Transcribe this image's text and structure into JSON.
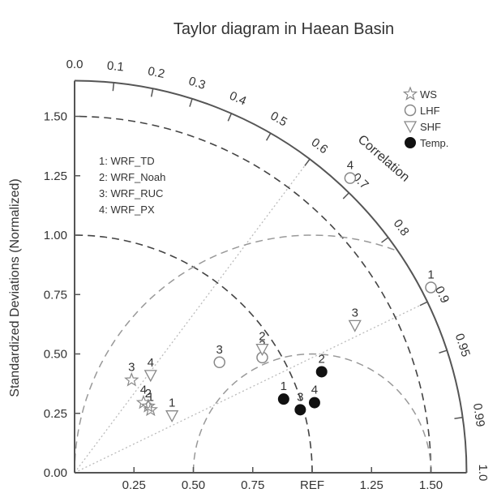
{
  "chart_data": {
    "type": "scatter",
    "title": "Taylor diagram in Haean Basin",
    "ylabel": "Standardized Deviations (Normalized)",
    "arc_label": "Correlation",
    "std_range": [
      0,
      1.65
    ],
    "x_ticks": [
      {
        "value": 0.0,
        "label": "0.00"
      },
      {
        "value": 0.25,
        "label": "0.25"
      },
      {
        "value": 0.5,
        "label": "0.50"
      },
      {
        "value": 0.75,
        "label": "0.75"
      },
      {
        "value": 1.0,
        "label": "REF"
      },
      {
        "value": 1.25,
        "label": "1.25"
      },
      {
        "value": 1.5,
        "label": "1.50"
      }
    ],
    "y_ticks": [
      {
        "value": 0.0,
        "label": "0.00"
      },
      {
        "value": 0.25,
        "label": "0.25"
      },
      {
        "value": 0.5,
        "label": "0.50"
      },
      {
        "value": 0.75,
        "label": "0.75"
      },
      {
        "value": 1.0,
        "label": "1.00"
      },
      {
        "value": 1.25,
        "label": "1.25"
      },
      {
        "value": 1.5,
        "label": "1.50"
      }
    ],
    "correlation_ticks": [
      {
        "value": 0.0,
        "label": "0.0"
      },
      {
        "value": 0.1,
        "label": "0.1"
      },
      {
        "value": 0.2,
        "label": "0.2"
      },
      {
        "value": 0.3,
        "label": "0.3"
      },
      {
        "value": 0.4,
        "label": "0.4"
      },
      {
        "value": 0.5,
        "label": "0.5"
      },
      {
        "value": 0.6,
        "label": "0.6"
      },
      {
        "value": 0.7,
        "label": "0.7"
      },
      {
        "value": 0.8,
        "label": "0.8"
      },
      {
        "value": 0.9,
        "label": "0.9"
      },
      {
        "value": 0.95,
        "label": "0.95"
      },
      {
        "value": 0.99,
        "label": "0.99"
      },
      {
        "value": 1.0,
        "label": "1.0"
      }
    ],
    "reference_lines": [
      0.6,
      0.9
    ],
    "rmsd_arcs": [
      0.5,
      1.0
    ],
    "std_arcs": [
      1.0,
      1.5
    ],
    "model_key": [
      "1: WRF_TD",
      "2: WRF_Noah",
      "3: WRF_RUC",
      "4: WRF_PX"
    ],
    "series": [
      {
        "name": "WS",
        "marker": "star",
        "color": "#888888",
        "points": [
          {
            "label": "1",
            "x": 0.32,
            "y": 0.265
          },
          {
            "label": "2",
            "x": 0.31,
            "y": 0.28
          },
          {
            "label": "3",
            "x": 0.24,
            "y": 0.39
          },
          {
            "label": "4",
            "x": 0.29,
            "y": 0.295
          }
        ]
      },
      {
        "name": "LHF",
        "marker": "circle-open",
        "color": "#888888",
        "points": [
          {
            "label": "1",
            "x": 1.5,
            "y": 0.78
          },
          {
            "label": "2",
            "x": 0.79,
            "y": 0.485
          },
          {
            "label": "3",
            "x": 0.61,
            "y": 0.465
          },
          {
            "label": "4",
            "x": 1.16,
            "y": 1.24
          }
        ]
      },
      {
        "name": "SHF",
        "marker": "triangle-down",
        "color": "#888888",
        "points": [
          {
            "label": "1",
            "x": 0.41,
            "y": 0.24
          },
          {
            "label": "2",
            "x": 0.79,
            "y": 0.52
          },
          {
            "label": "3",
            "x": 1.18,
            "y": 0.62
          },
          {
            "label": "4",
            "x": 0.32,
            "y": 0.41
          }
        ]
      },
      {
        "name": "Temp.",
        "marker": "circle-filled",
        "color": "#111111",
        "points": [
          {
            "label": "1",
            "x": 0.88,
            "y": 0.31
          },
          {
            "label": "2",
            "x": 1.04,
            "y": 0.425
          },
          {
            "label": "3",
            "x": 0.95,
            "y": 0.265
          },
          {
            "label": "4",
            "x": 1.01,
            "y": 0.295
          }
        ]
      }
    ],
    "legend_position": "top-right",
    "colors": {
      "axis": "#555555",
      "grid_dash": "#999999",
      "rmsd_dash": "#444444",
      "corr_lines": "#bbbbbb",
      "marker_gray": "#888888",
      "marker_dark": "#111111"
    }
  }
}
